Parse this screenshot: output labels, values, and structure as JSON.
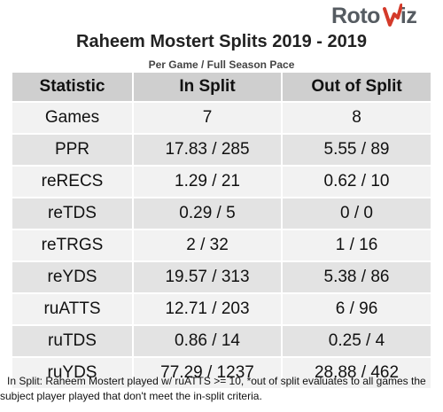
{
  "logo": {
    "part1": "Roto",
    "part2": "iz"
  },
  "chart_data": {
    "type": "table",
    "title": "Raheem Mostert Splits 2019 - 2019",
    "subtitle": "Per Game / Full Season Pace",
    "columns": [
      "Statistic",
      "In Split",
      "Out of Split"
    ],
    "rows": [
      [
        "Games",
        "7",
        "8"
      ],
      [
        "PPR",
        "17.83 / 285",
        "5.55 / 89"
      ],
      [
        "reRECS",
        "1.29 / 21",
        "0.62 / 10"
      ],
      [
        "reTDS",
        "0.29 / 5",
        "0 / 0"
      ],
      [
        "reTRGS",
        "2 / 32",
        "1 / 16"
      ],
      [
        "reYDS",
        "19.57 / 313",
        "5.38 / 86"
      ],
      [
        "ruATTS",
        "12.71 / 203",
        "6 / 96"
      ],
      [
        "ruTDS",
        "0.86 / 14",
        "0.25 / 4"
      ],
      [
        "ruYDS",
        "77.29 / 1237",
        "28.88 / 462"
      ]
    ]
  },
  "footnote": {
    "line1": "In Split: Raheem Mostert played w/ ruATTS >= 10,  *out of split evaluates to all games the",
    "line2": "subject player played that don't meet the in-split criteria."
  },
  "colors": {
    "logo_gray": "#555b61",
    "logo_red": "#d43a2a",
    "header_bg": "#cfcfcf",
    "row_light": "#f2f2f2",
    "row_dark": "#e3e3e3"
  }
}
